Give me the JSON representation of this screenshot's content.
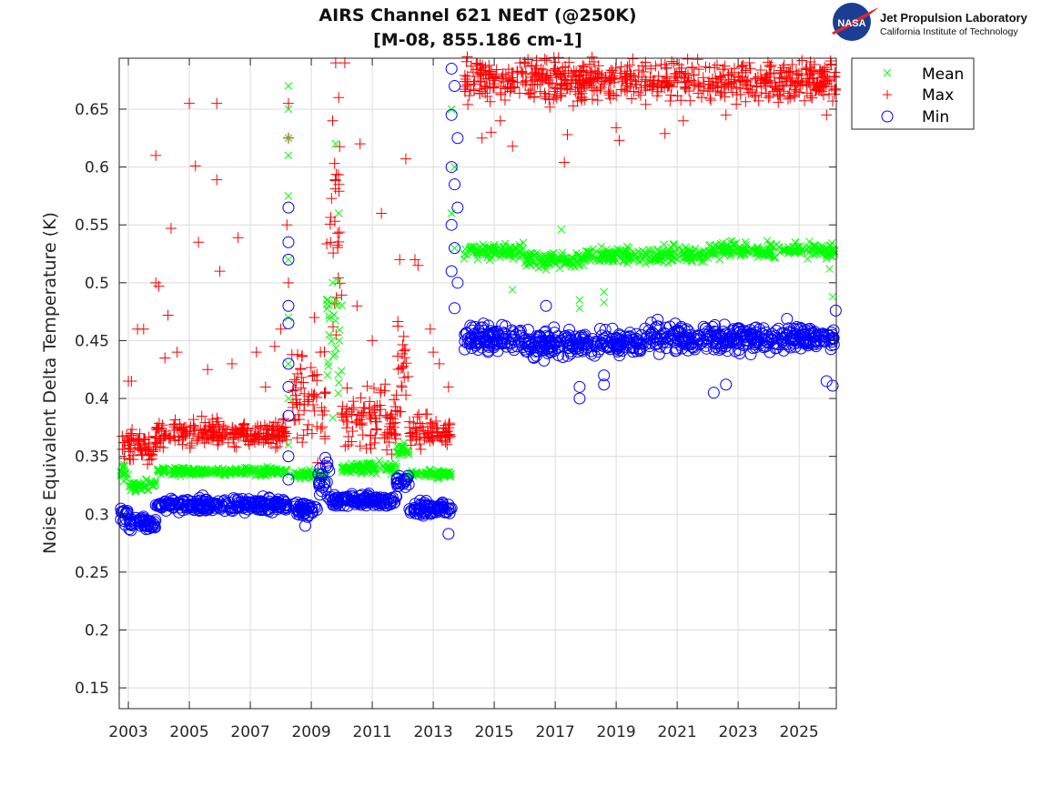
{
  "logo": {
    "nasa_text": "NASA",
    "org_name": "Jet Propulsion Laboratory",
    "org_sub": "California Institute of Technology"
  },
  "chart_data": {
    "type": "scatter",
    "title": "AIRS Channel 621 NEdT (@250K)",
    "subtitle": "[M-08, 855.186 cm-1]",
    "xlabel": "",
    "ylabel": "Noise Equivalent Delta Temperature (K)",
    "xlim": [
      2002.7,
      2026.22
    ],
    "ylim": [
      0.132,
      0.694
    ],
    "x_ticks": [
      2003,
      2005,
      2007,
      2009,
      2011,
      2013,
      2015,
      2017,
      2019,
      2021,
      2023,
      2025
    ],
    "x_tick_labels": [
      "2003",
      "2005",
      "2007",
      "2009",
      "2011",
      "2013",
      "2015",
      "2017",
      "2019",
      "2021",
      "2023",
      "2025"
    ],
    "y_ticks": [
      0.15,
      0.2,
      0.25,
      0.3,
      0.35,
      0.4,
      0.45,
      0.5,
      0.55,
      0.6,
      0.65
    ],
    "y_tick_labels": [
      "0.15",
      "0.2",
      "0.25",
      "0.3",
      "0.35",
      "0.4",
      "0.45",
      "0.5",
      "0.55",
      "0.6",
      "0.65"
    ],
    "grid": true,
    "legend_position": "outside-top-right",
    "series": [
      {
        "name": "Mean",
        "marker": "x",
        "color": "#00ff00",
        "segments": [
          {
            "x0": 2002.75,
            "x1": 2003.0,
            "center": 0.335,
            "spread": 0.008
          },
          {
            "x0": 2003.0,
            "x1": 2003.9,
            "center": 0.325,
            "spread": 0.004
          },
          {
            "x0": 2003.9,
            "x1": 2008.2,
            "center": 0.337,
            "spread": 0.003
          },
          {
            "x0": 2008.4,
            "x1": 2009.5,
            "center": 0.334,
            "spread": 0.003
          },
          {
            "x0": 2009.5,
            "x1": 2010.0,
            "center": 0.45,
            "spread": 0.06
          },
          {
            "x0": 2010.0,
            "x1": 2011.8,
            "center": 0.34,
            "spread": 0.004
          },
          {
            "x0": 2011.8,
            "x1": 2012.2,
            "center": 0.355,
            "spread": 0.006
          },
          {
            "x0": 2012.2,
            "x1": 2013.6,
            "center": 0.335,
            "spread": 0.003
          },
          {
            "x0": 2014.0,
            "x1": 2016.0,
            "center": 0.527,
            "spread": 0.006
          },
          {
            "x0": 2016.0,
            "x1": 2018.0,
            "center": 0.52,
            "spread": 0.006
          },
          {
            "x0": 2018.0,
            "x1": 2022.0,
            "center": 0.524,
            "spread": 0.006
          },
          {
            "x0": 2022.0,
            "x1": 2026.2,
            "center": 0.528,
            "spread": 0.006
          }
        ],
        "outliers": [
          [
            2008.25,
            0.67
          ],
          [
            2008.25,
            0.65
          ],
          [
            2008.25,
            0.625
          ],
          [
            2008.25,
            0.61
          ],
          [
            2008.25,
            0.575
          ],
          [
            2008.25,
            0.52
          ],
          [
            2008.25,
            0.47
          ],
          [
            2008.25,
            0.43
          ],
          [
            2008.25,
            0.4
          ],
          [
            2008.25,
            0.36
          ],
          [
            2009.8,
            0.62
          ],
          [
            2009.9,
            0.56
          ],
          [
            2009.7,
            0.5
          ],
          [
            2009.85,
            0.48
          ],
          [
            2013.6,
            0.65
          ],
          [
            2013.7,
            0.6
          ],
          [
            2013.6,
            0.56
          ],
          [
            2013.7,
            0.53
          ],
          [
            2015.6,
            0.494
          ],
          [
            2017.2,
            0.546
          ],
          [
            2017.8,
            0.485
          ],
          [
            2017.8,
            0.478
          ],
          [
            2018.6,
            0.492
          ],
          [
            2018.6,
            0.483
          ],
          [
            2026.0,
            0.512
          ],
          [
            2026.1,
            0.488
          ]
        ]
      },
      {
        "name": "Max",
        "marker": "+",
        "color": "#ff0000",
        "segments": [
          {
            "x0": 2002.75,
            "x1": 2003.9,
            "center": 0.358,
            "spread": 0.012
          },
          {
            "x0": 2003.9,
            "x1": 2008.2,
            "center": 0.37,
            "spread": 0.01
          },
          {
            "x0": 2008.35,
            "x1": 2009.5,
            "center": 0.4,
            "spread": 0.04
          },
          {
            "x0": 2009.5,
            "x1": 2010.0,
            "center": 0.55,
            "spread": 0.08
          },
          {
            "x0": 2010.0,
            "x1": 2011.8,
            "center": 0.38,
            "spread": 0.025
          },
          {
            "x0": 2011.8,
            "x1": 2012.2,
            "center": 0.42,
            "spread": 0.04
          },
          {
            "x0": 2012.2,
            "x1": 2013.6,
            "center": 0.37,
            "spread": 0.012
          },
          {
            "x0": 2014.0,
            "x1": 2026.2,
            "center": 0.675,
            "spread": 0.016
          }
        ],
        "outliers": [
          [
            2003.0,
            0.415
          ],
          [
            2003.1,
            0.415
          ],
          [
            2003.3,
            0.46
          ],
          [
            2003.5,
            0.46
          ],
          [
            2003.9,
            0.61
          ],
          [
            2003.9,
            0.5
          ],
          [
            2004.0,
            0.497
          ],
          [
            2004.3,
            0.472
          ],
          [
            2004.4,
            0.547
          ],
          [
            2005.0,
            0.655
          ],
          [
            2005.2,
            0.601
          ],
          [
            2005.3,
            0.535
          ],
          [
            2005.9,
            0.655
          ],
          [
            2005.9,
            0.589
          ],
          [
            2006.0,
            0.51
          ],
          [
            2006.6,
            0.539
          ],
          [
            2004.2,
            0.435
          ],
          [
            2004.6,
            0.44
          ],
          [
            2005.6,
            0.425
          ],
          [
            2006.4,
            0.43
          ],
          [
            2007.2,
            0.44
          ],
          [
            2007.5,
            0.41
          ],
          [
            2007.8,
            0.445
          ],
          [
            2008.0,
            0.46
          ],
          [
            2008.25,
            0.625
          ],
          [
            2008.25,
            0.655
          ],
          [
            2008.2,
            0.55
          ],
          [
            2008.25,
            0.5
          ],
          [
            2009.1,
            0.47
          ],
          [
            2009.3,
            0.44
          ],
          [
            2009.8,
            0.69
          ],
          [
            2009.9,
            0.66
          ],
          [
            2009.7,
            0.64
          ],
          [
            2010.1,
            0.69
          ],
          [
            2010.6,
            0.62
          ],
          [
            2011.3,
            0.56
          ],
          [
            2010.5,
            0.48
          ],
          [
            2011.0,
            0.45
          ],
          [
            2012.1,
            0.607
          ],
          [
            2011.9,
            0.52
          ],
          [
            2012.4,
            0.52
          ],
          [
            2012.5,
            0.515
          ],
          [
            2012.9,
            0.46
          ],
          [
            2013.0,
            0.44
          ],
          [
            2013.2,
            0.43
          ],
          [
            2013.5,
            0.41
          ],
          [
            2014.6,
            0.625
          ],
          [
            2014.9,
            0.63
          ],
          [
            2015.2,
            0.64
          ],
          [
            2015.6,
            0.618
          ],
          [
            2017.3,
            0.604
          ],
          [
            2017.4,
            0.628
          ],
          [
            2019.1,
            0.623
          ],
          [
            2019.0,
            0.634
          ],
          [
            2020.6,
            0.629
          ],
          [
            2021.2,
            0.64
          ],
          [
            2022.6,
            0.645
          ],
          [
            2024.0,
            0.66
          ],
          [
            2025.9,
            0.645
          ],
          [
            2026.1,
            0.657
          ]
        ]
      },
      {
        "name": "Min",
        "marker": "o",
        "color": "#0000ff",
        "segments": [
          {
            "x0": 2002.75,
            "x1": 2003.0,
            "center": 0.3,
            "spread": 0.008
          },
          {
            "x0": 2003.0,
            "x1": 2003.9,
            "center": 0.292,
            "spread": 0.005
          },
          {
            "x0": 2003.9,
            "x1": 2008.2,
            "center": 0.308,
            "spread": 0.005
          },
          {
            "x0": 2008.4,
            "x1": 2009.2,
            "center": 0.305,
            "spread": 0.005
          },
          {
            "x0": 2009.2,
            "x1": 2009.6,
            "center": 0.33,
            "spread": 0.015
          },
          {
            "x0": 2009.6,
            "x1": 2011.8,
            "center": 0.312,
            "spread": 0.005
          },
          {
            "x0": 2011.8,
            "x1": 2012.2,
            "center": 0.328,
            "spread": 0.006
          },
          {
            "x0": 2012.2,
            "x1": 2013.6,
            "center": 0.305,
            "spread": 0.005
          },
          {
            "x0": 2014.0,
            "x1": 2016.0,
            "center": 0.452,
            "spread": 0.01
          },
          {
            "x0": 2016.0,
            "x1": 2020.0,
            "center": 0.448,
            "spread": 0.01
          },
          {
            "x0": 2020.0,
            "x1": 2026.2,
            "center": 0.452,
            "spread": 0.01
          }
        ],
        "outliers": [
          [
            2008.25,
            0.565
          ],
          [
            2008.25,
            0.535
          ],
          [
            2008.25,
            0.52
          ],
          [
            2008.25,
            0.48
          ],
          [
            2008.25,
            0.465
          ],
          [
            2008.25,
            0.43
          ],
          [
            2008.25,
            0.41
          ],
          [
            2008.25,
            0.385
          ],
          [
            2008.25,
            0.35
          ],
          [
            2008.25,
            0.33
          ],
          [
            2013.6,
            0.685
          ],
          [
            2013.7,
            0.67
          ],
          [
            2013.6,
            0.645
          ],
          [
            2013.8,
            0.625
          ],
          [
            2013.6,
            0.6
          ],
          [
            2013.7,
            0.585
          ],
          [
            2013.8,
            0.565
          ],
          [
            2013.6,
            0.55
          ],
          [
            2013.7,
            0.53
          ],
          [
            2013.6,
            0.51
          ],
          [
            2013.8,
            0.5
          ],
          [
            2013.7,
            0.478
          ],
          [
            2013.5,
            0.283
          ],
          [
            2008.8,
            0.29
          ],
          [
            2017.8,
            0.4
          ],
          [
            2017.8,
            0.41
          ],
          [
            2018.6,
            0.412
          ],
          [
            2018.6,
            0.42
          ],
          [
            2016.7,
            0.48
          ],
          [
            2022.2,
            0.405
          ],
          [
            2022.6,
            0.412
          ],
          [
            2025.9,
            0.415
          ],
          [
            2026.1,
            0.411
          ],
          [
            2026.2,
            0.476
          ]
        ]
      }
    ]
  }
}
